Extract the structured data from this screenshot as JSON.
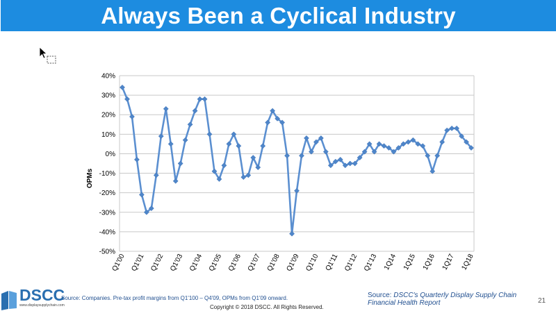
{
  "slide": {
    "title": "Always Been a Cyclical Industry",
    "page_number": "21"
  },
  "footer": {
    "logo_text": "DSCC",
    "logo_url": "www.displaysupplychain.com",
    "source_left": "Source: Companies. Pre-tax profit margins from Q1'100 – Q4'09, OPMs from Q1'09 onward.",
    "copyright": "Copyright © 2018 DSCC. All Rights Reserved.",
    "source_right_prefix": "Source: ",
    "source_right_italic": "DSCC's Quarterly Display Supply Chain Financial Health Report"
  },
  "colors": {
    "title_bar": "#1d8ce0",
    "series": "#5b8fd0",
    "marker": "#4f86c9"
  },
  "chart_data": {
    "type": "line",
    "title": "",
    "xlabel": "",
    "ylabel": "OPMs",
    "ylim": [
      -50,
      40
    ],
    "yticks": [
      "40%",
      "30%",
      "20%",
      "10%",
      "0%",
      "-10%",
      "-20%",
      "-30%",
      "-40%",
      "-50%"
    ],
    "ytick_values": [
      40,
      30,
      20,
      10,
      0,
      -10,
      -20,
      -30,
      -40,
      -50
    ],
    "x_tick_labels": [
      {
        "label": "Q1'00",
        "index": 0
      },
      {
        "label": "Q1'01",
        "index": 4
      },
      {
        "label": "Q1'02",
        "index": 8
      },
      {
        "label": "Q1'03",
        "index": 12
      },
      {
        "label": "Q1'04",
        "index": 16
      },
      {
        "label": "Q1'05",
        "index": 20
      },
      {
        "label": "Q1'06",
        "index": 24
      },
      {
        "label": "Q1'07",
        "index": 28
      },
      {
        "label": "Q1'08",
        "index": 32
      },
      {
        "label": "Q1'09",
        "index": 36
      },
      {
        "label": "Q1'10",
        "index": 40
      },
      {
        "label": "Q1'11",
        "index": 44
      },
      {
        "label": "Q1'12",
        "index": 48
      },
      {
        "label": "Q1'13",
        "index": 52
      },
      {
        "label": "1Q14",
        "index": 56
      },
      {
        "label": "1Q15",
        "index": 60
      },
      {
        "label": "1Q16",
        "index": 64
      },
      {
        "label": "1Q17",
        "index": 68
      },
      {
        "label": "1Q18",
        "index": 72
      }
    ],
    "grid": true,
    "series": [
      {
        "values": [
          34,
          28,
          19,
          -3,
          -21,
          -30,
          -28,
          -11,
          9,
          23,
          5,
          -14,
          -5,
          7,
          15,
          22,
          28,
          28,
          10,
          -9,
          -13,
          -6,
          5,
          10,
          4,
          -12,
          -11,
          -2,
          -7,
          4,
          16,
          22,
          18,
          16,
          -1,
          -41,
          -19,
          -1,
          8,
          1,
          6,
          8,
          1,
          -6,
          -4,
          -3,
          -6,
          -5,
          -5,
          -2,
          1,
          5,
          1,
          5,
          4,
          3,
          1,
          3,
          5,
          6,
          7,
          5,
          4,
          -1,
          -9,
          -1,
          6,
          12,
          13,
          13,
          9,
          6,
          3
        ]
      }
    ]
  }
}
